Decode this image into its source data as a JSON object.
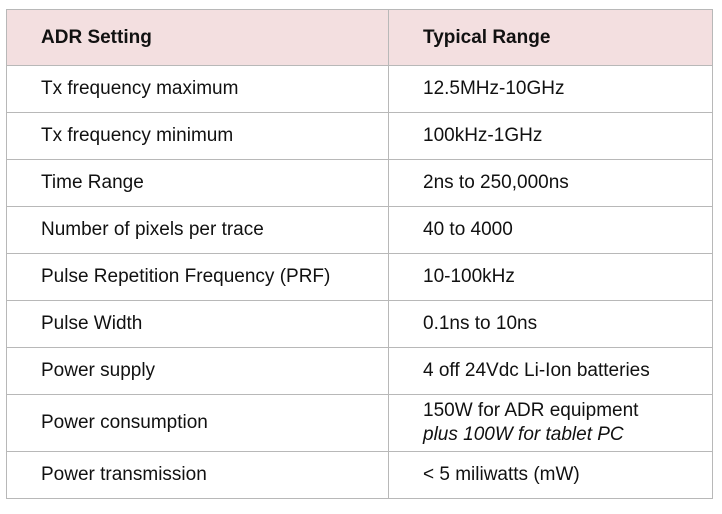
{
  "table": {
    "headers": [
      "ADR Setting",
      "Typical Range"
    ],
    "rows": [
      {
        "setting": "Tx frequency maximum",
        "range": "12.5MHz-10GHz"
      },
      {
        "setting": "Tx frequency minimum",
        "range": "100kHz-1GHz"
      },
      {
        "setting": "Time Range",
        "range": "2ns to 250,000ns"
      },
      {
        "setting": "Number of pixels per trace",
        "range": "40 to 4000"
      },
      {
        "setting": "Pulse Repetition Frequency (PRF)",
        "range": "10-100kHz"
      },
      {
        "setting": "Pulse Width",
        "range": "0.1ns to 10ns"
      },
      {
        "setting": "Power supply",
        "range": "4 off 24Vdc Li-Ion batteries"
      },
      {
        "setting": "Power consumption",
        "range": "150W for ADR equipment",
        "range_note": "plus 100W for tablet PC"
      },
      {
        "setting": "Power transmission",
        "range": "< 5 miliwatts (mW)"
      }
    ]
  },
  "colors": {
    "header_background": "#f3dfe0",
    "border": "#b8b8b8",
    "text": "#111111"
  }
}
